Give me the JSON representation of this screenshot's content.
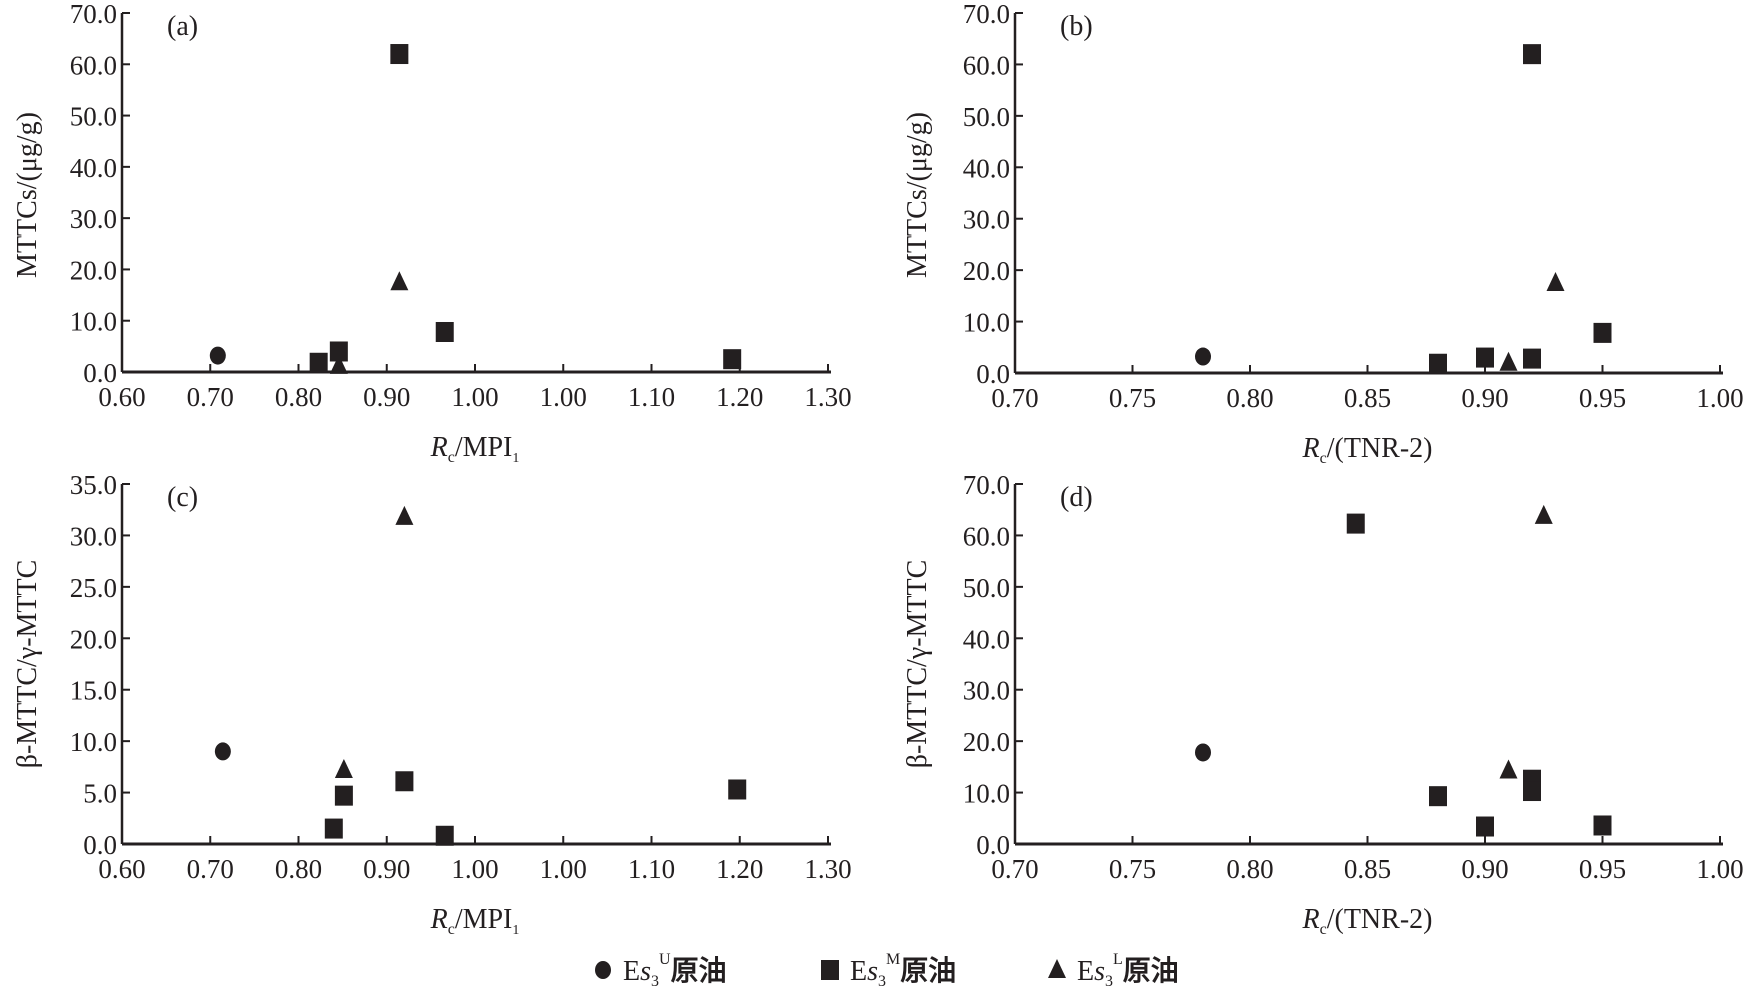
{
  "chart_data": [
    {
      "type": "scatter",
      "panel": "(a)",
      "xlabel_main": "R",
      "xlabel_sub": "c",
      "xlabel_rest": "/MPI",
      "xlabel_rest_sub": "1",
      "ylabel": "MTTCs/(μg/g)",
      "xlim": [
        0.6,
        1.3
      ],
      "xticks": [
        "0.60",
        "0.70",
        "0.80",
        "0.90",
        "1.00",
        "1.00",
        "1.10",
        "1.20",
        "1.30"
      ],
      "ylim": [
        0,
        70
      ],
      "yticks": [
        "0.0",
        "10.0",
        "20.0",
        "30.0",
        "40.0",
        "50.0",
        "60.0",
        "70.0"
      ],
      "series": [
        {
          "name": "Es3U",
          "marker": "circle",
          "points": [
            [
              0.695,
              3.2
            ]
          ]
        },
        {
          "name": "Es3M",
          "marker": "square",
          "points": [
            [
              0.795,
              1.8
            ],
            [
              0.815,
              4.0
            ],
            [
              0.875,
              62.0
            ],
            [
              0.92,
              7.8
            ],
            [
              1.205,
              2.5
            ]
          ]
        },
        {
          "name": "Es3L",
          "marker": "triangle",
          "points": [
            [
              0.815,
              1.2
            ],
            [
              0.875,
              17.5
            ]
          ]
        }
      ]
    },
    {
      "type": "scatter",
      "panel": "(b)",
      "xlabel_main": "R",
      "xlabel_sub": "c",
      "xlabel_rest": "/(TNR-2)",
      "xlabel_rest_sub": "",
      "ylabel": "MTTCs/(μg/g)",
      "xlim": [
        0.7,
        1.0
      ],
      "xticks": [
        "0.70",
        "0.75",
        "0.80",
        "0.85",
        "0.90",
        "0.95",
        "1.00"
      ],
      "ylim": [
        0,
        70
      ],
      "yticks": [
        "0.0",
        "10.0",
        "20.0",
        "30.0",
        "40.0",
        "50.0",
        "60.0",
        "70.0"
      ],
      "series": [
        {
          "name": "Es3U",
          "marker": "circle",
          "points": [
            [
              0.78,
              3.2
            ]
          ]
        },
        {
          "name": "Es3M",
          "marker": "square",
          "points": [
            [
              0.88,
              1.8
            ],
            [
              0.9,
              3.0
            ],
            [
              0.92,
              2.8
            ],
            [
              0.92,
              62.0
            ],
            [
              0.95,
              7.8
            ]
          ]
        },
        {
          "name": "Es3L",
          "marker": "triangle",
          "points": [
            [
              0.91,
              2.0
            ],
            [
              0.93,
              17.5
            ]
          ]
        }
      ]
    },
    {
      "type": "scatter",
      "panel": "(c)",
      "xlabel_main": "R",
      "xlabel_sub": "c",
      "xlabel_rest": "/MPI",
      "xlabel_rest_sub": "1",
      "ylabel": "β-MTTC/γ-MTTC",
      "xlim": [
        0.6,
        1.3
      ],
      "xticks": [
        "0.60",
        "0.70",
        "0.80",
        "0.90",
        "1.00",
        "1.00",
        "1.10",
        "1.20",
        "1.30"
      ],
      "ylim": [
        0,
        35
      ],
      "yticks": [
        "0.0",
        "5.0",
        "10.0",
        "15.0",
        "20.0",
        "25.0",
        "30.0",
        "35.0"
      ],
      "series": [
        {
          "name": "Es3U",
          "marker": "circle",
          "points": [
            [
              0.7,
              9.0
            ]
          ]
        },
        {
          "name": "Es3M",
          "marker": "square",
          "points": [
            [
              0.81,
              1.5
            ],
            [
              0.82,
              4.7
            ],
            [
              0.88,
              6.1
            ],
            [
              0.92,
              0.8
            ],
            [
              1.21,
              5.3
            ]
          ]
        },
        {
          "name": "Es3L",
          "marker": "triangle",
          "points": [
            [
              0.82,
              7.2
            ],
            [
              0.88,
              31.8
            ]
          ]
        }
      ]
    },
    {
      "type": "scatter",
      "panel": "(d)",
      "xlabel_main": "R",
      "xlabel_sub": "c",
      "xlabel_rest": "/(TNR-2)",
      "xlabel_rest_sub": "",
      "ylabel": "β-MTTC/γ-MTTC",
      "xlim": [
        0.7,
        1.0
      ],
      "xticks": [
        "0.70",
        "0.75",
        "0.80",
        "0.85",
        "0.90",
        "0.95",
        "1.00"
      ],
      "ylim": [
        0,
        70
      ],
      "yticks": [
        "0.0",
        "10.0",
        "20.0",
        "30.0",
        "40.0",
        "50.0",
        "60.0",
        "70.0"
      ],
      "series": [
        {
          "name": "Es3U",
          "marker": "circle",
          "points": [
            [
              0.78,
              17.8
            ]
          ]
        },
        {
          "name": "Es3M",
          "marker": "square",
          "points": [
            [
              0.845,
              62.3
            ],
            [
              0.88,
              9.3
            ],
            [
              0.9,
              3.4
            ],
            [
              0.92,
              12.5
            ],
            [
              0.92,
              10.3
            ],
            [
              0.95,
              3.6
            ]
          ]
        },
        {
          "name": "Es3L",
          "marker": "triangle",
          "points": [
            [
              0.91,
              14.3
            ],
            [
              0.925,
              63.8
            ]
          ]
        }
      ]
    }
  ],
  "legend": {
    "placement": "bottom",
    "items": [
      {
        "marker": "circle",
        "prefix": "E",
        "italic": "s",
        "sub": "3",
        "sup": "U",
        "suffix": "原油"
      },
      {
        "marker": "square",
        "prefix": "E",
        "italic": "s",
        "sub": "3",
        "sup": "M",
        "suffix": "原油"
      },
      {
        "marker": "triangle",
        "prefix": "E",
        "italic": "s",
        "sub": "3",
        "sup": "L",
        "suffix": "原油"
      }
    ]
  },
  "colors": {
    "ink": "#231f20"
  }
}
